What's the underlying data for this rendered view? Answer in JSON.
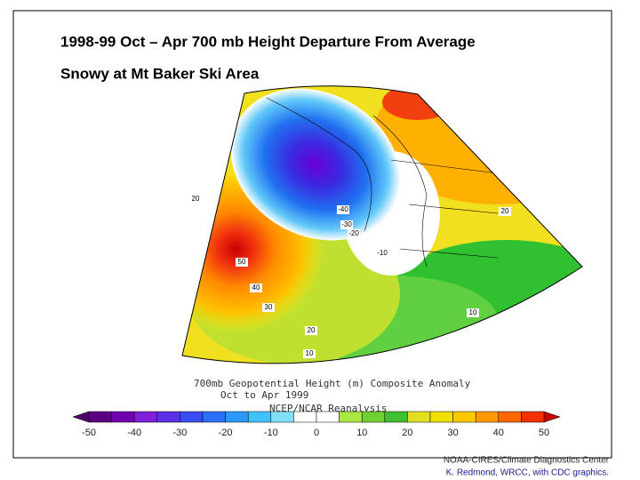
{
  "header": {
    "title": "1998-99  Oct – Apr  700 mb Height Departure From Average",
    "subtitle": "Snowy at Mt Baker Ski Area"
  },
  "map": {
    "contour_labels": [
      "-40",
      "-30",
      "-20",
      "-10",
      "50",
      "40",
      "30",
      "20",
      "10",
      "20",
      "10",
      "20"
    ],
    "caption": [
      "700mb Geopotential Height (m) Composite Anomaly",
      "Oct to Apr 1999",
      "NCEP/NCAR Reanalysis"
    ],
    "colorbar_labels": [
      "-50",
      "-40",
      "-30",
      "-20",
      "-10",
      "0",
      "10",
      "20",
      "30",
      "40",
      "50"
    ]
  },
  "footer": {
    "source": "NOAA-CIRES/Climate Diagnostics Center",
    "credit": "K. Redmond, WRCC, with CDC graphics."
  }
}
